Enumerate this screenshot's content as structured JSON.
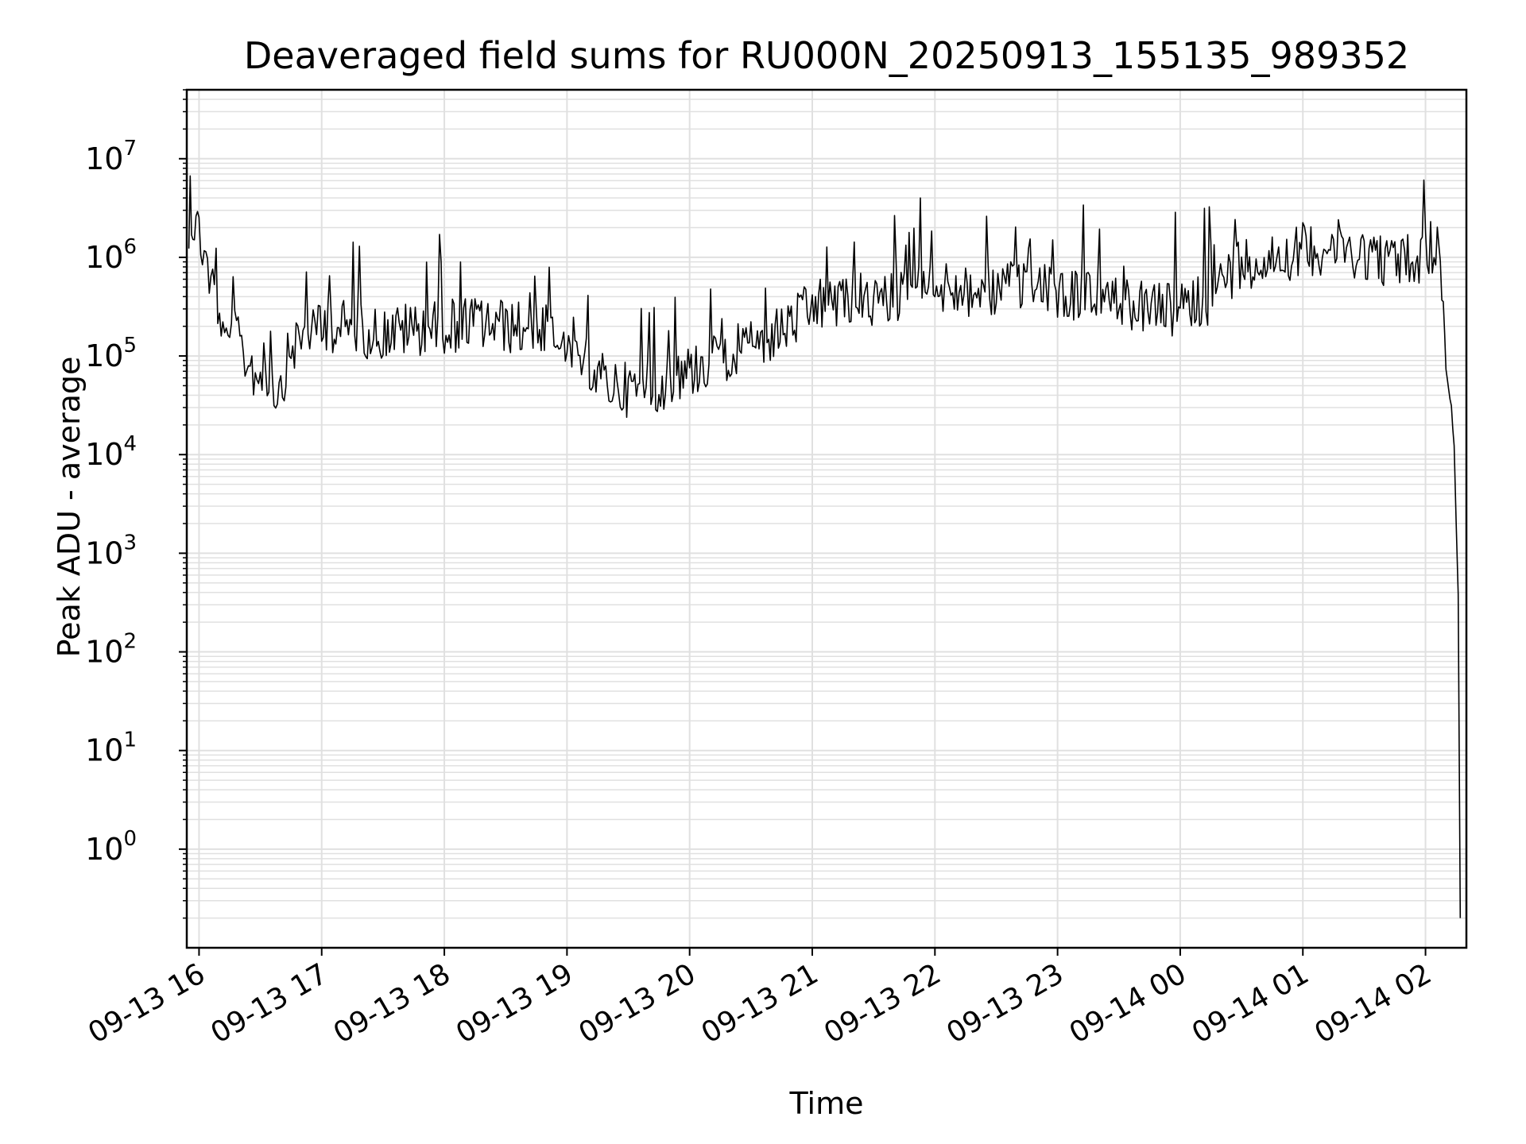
{
  "chart_data": {
    "type": "line",
    "title": "Deaveraged field sums for RU000N_20250913_155135_989352",
    "xlabel": "Time",
    "ylabel": "Peak ADU - average",
    "yscale": "log",
    "ylim": [
      0.1,
      50000000
    ],
    "xlim": [
      "2025-09-13 15:54",
      "2025-09-14 02:20"
    ],
    "grid": true,
    "line_color": "#000000",
    "grid_color": "#e0e0e0",
    "x_ticks": [
      {
        "value": "2025-09-13 16:00",
        "label": "09-13 16"
      },
      {
        "value": "2025-09-13 17:00",
        "label": "09-13 17"
      },
      {
        "value": "2025-09-13 18:00",
        "label": "09-13 18"
      },
      {
        "value": "2025-09-13 19:00",
        "label": "09-13 19"
      },
      {
        "value": "2025-09-13 20:00",
        "label": "09-13 20"
      },
      {
        "value": "2025-09-13 21:00",
        "label": "09-13 21"
      },
      {
        "value": "2025-09-13 22:00",
        "label": "09-13 22"
      },
      {
        "value": "2025-09-13 23:00",
        "label": "09-13 23"
      },
      {
        "value": "2025-09-14 00:00",
        "label": "09-14 00"
      },
      {
        "value": "2025-09-14 01:00",
        "label": "09-14 01"
      },
      {
        "value": "2025-09-14 02:00",
        "label": "09-14 02"
      }
    ],
    "y_ticks": [
      {
        "exponent": "0",
        "value": 1
      },
      {
        "exponent": "1",
        "value": 10
      },
      {
        "exponent": "2",
        "value": 100
      },
      {
        "exponent": "3",
        "value": 1000
      },
      {
        "exponent": "4",
        "value": 10000
      },
      {
        "exponent": "5",
        "value": 100000
      },
      {
        "exponent": "6",
        "value": 1000000
      },
      {
        "exponent": "7",
        "value": 10000000
      }
    ],
    "y_tick_base": "10",
    "series": [
      {
        "x": [
          "2025-09-13 15:55",
          "2025-09-13 15:57",
          "2025-09-13 16:00",
          "2025-09-13 16:05",
          "2025-09-13 16:10",
          "2025-09-13 16:15",
          "2025-09-13 16:20",
          "2025-09-13 16:25",
          "2025-09-13 16:30",
          "2025-09-13 16:35",
          "2025-09-13 16:40",
          "2025-09-13 16:45",
          "2025-09-13 16:50",
          "2025-09-13 16:55",
          "2025-09-13 17:00",
          "2025-09-13 17:10",
          "2025-09-13 17:20",
          "2025-09-13 17:30",
          "2025-09-13 17:45",
          "2025-09-13 18:00",
          "2025-09-13 18:15",
          "2025-09-13 18:30",
          "2025-09-13 18:45",
          "2025-09-13 19:00",
          "2025-09-13 19:15",
          "2025-09-13 19:30",
          "2025-09-13 19:45",
          "2025-09-13 20:00",
          "2025-09-13 20:15",
          "2025-09-13 20:30",
          "2025-09-13 20:45",
          "2025-09-13 21:00",
          "2025-09-13 21:15",
          "2025-09-13 21:30",
          "2025-09-13 21:45",
          "2025-09-13 22:00",
          "2025-09-13 22:15",
          "2025-09-13 22:30",
          "2025-09-13 22:45",
          "2025-09-13 23:00",
          "2025-09-13 23:15",
          "2025-09-13 23:30",
          "2025-09-13 23:45",
          "2025-09-14 00:00",
          "2025-09-14 00:15",
          "2025-09-14 00:30",
          "2025-09-14 00:45",
          "2025-09-14 01:00",
          "2025-09-14 01:15",
          "2025-09-14 01:30",
          "2025-09-14 01:45",
          "2025-09-14 02:00",
          "2025-09-14 02:05",
          "2025-09-14 02:08",
          "2025-09-14 02:10",
          "2025-09-14 02:12",
          "2025-09-14 02:14",
          "2025-09-14 02:15",
          "2025-09-14 02:16",
          "2025-09-14 02:17"
        ],
        "y": [
          1500000,
          2500000,
          1800000,
          700000,
          250000,
          200000,
          120000,
          80000,
          60000,
          45000,
          50000,
          120000,
          150000,
          180000,
          200000,
          200000,
          180000,
          170000,
          190000,
          200000,
          220000,
          200000,
          180000,
          160000,
          60000,
          45000,
          50000,
          70000,
          100000,
          120000,
          180000,
          300000,
          400000,
          350000,
          400000,
          500000,
          450000,
          450000,
          500000,
          450000,
          400000,
          350000,
          300000,
          280000,
          400000,
          900000,
          1000000,
          1200000,
          1300000,
          1100000,
          900000,
          1000000,
          1500000,
          700000,
          80000,
          40000,
          10000,
          2500,
          500,
          0.2
        ]
      }
    ]
  }
}
